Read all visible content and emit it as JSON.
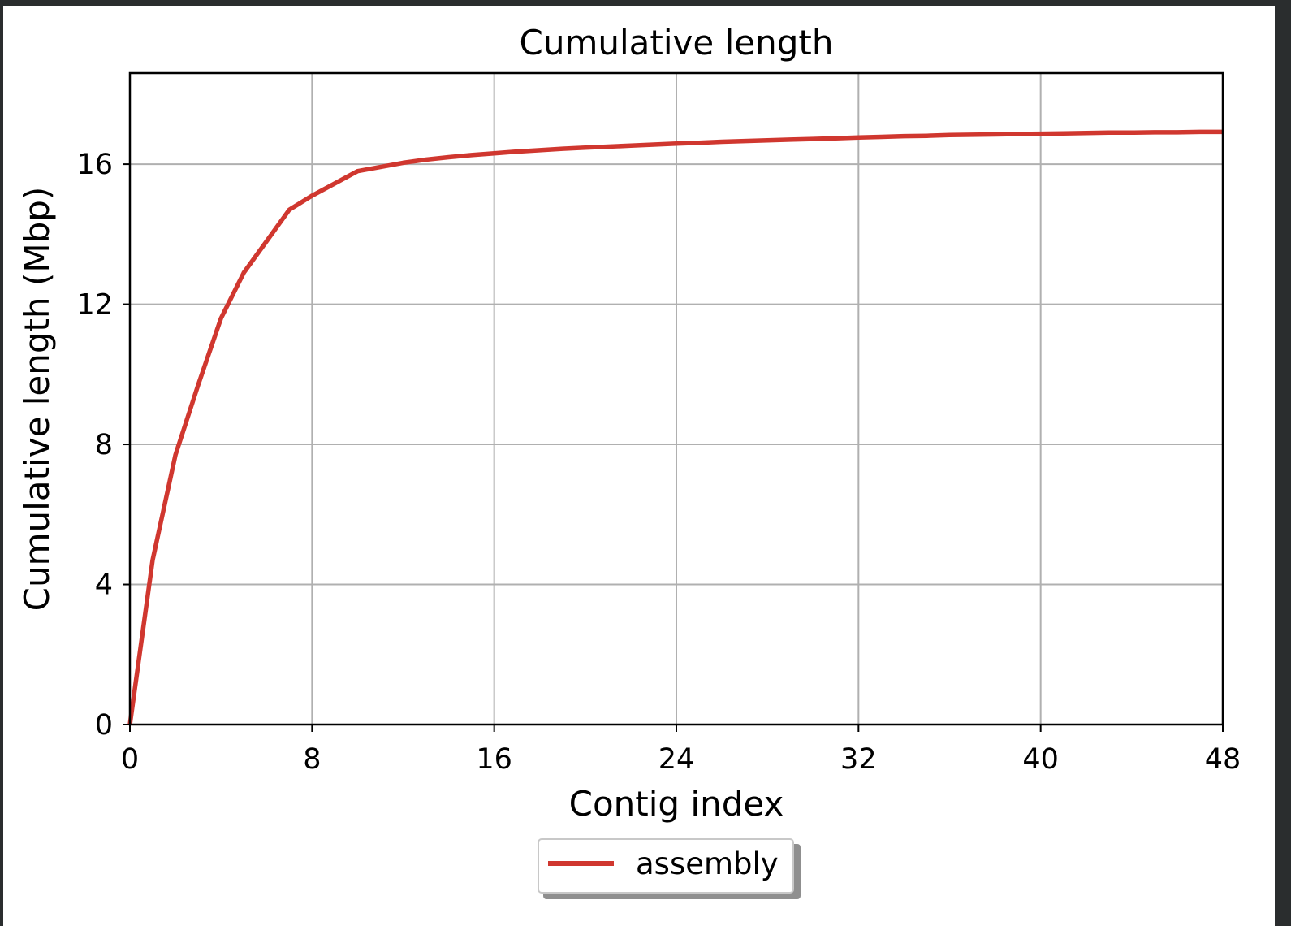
{
  "chart_data": {
    "type": "line",
    "title": "Cumulative length",
    "xlabel": "Contig index",
    "ylabel": "Cumulative length (Mbp)",
    "xlim": [
      0,
      48
    ],
    "ylim": [
      0,
      18.6
    ],
    "xticks": [
      0,
      8,
      16,
      24,
      32,
      40,
      48
    ],
    "yticks": [
      0,
      4,
      8,
      12,
      16
    ],
    "grid": true,
    "legend_position": "bottom-center",
    "series": [
      {
        "name": "assembly",
        "color": "#d0372f",
        "x": [
          0,
          1,
          2,
          3,
          4,
          5,
          6,
          7,
          8,
          9,
          10,
          11,
          12,
          13,
          14,
          15,
          16,
          17,
          18,
          19,
          20,
          21,
          22,
          23,
          24,
          25,
          26,
          27,
          28,
          29,
          30,
          31,
          32,
          33,
          34,
          35,
          36,
          37,
          38,
          39,
          40,
          41,
          42,
          43,
          44,
          45,
          46,
          47,
          48
        ],
        "y": [
          0,
          4.7,
          7.7,
          9.7,
          11.6,
          12.9,
          13.8,
          14.7,
          15.1,
          15.45,
          15.8,
          15.92,
          16.04,
          16.13,
          16.2,
          16.26,
          16.31,
          16.36,
          16.4,
          16.44,
          16.47,
          16.5,
          16.53,
          16.56,
          16.59,
          16.61,
          16.64,
          16.66,
          16.68,
          16.7,
          16.72,
          16.74,
          16.76,
          16.78,
          16.8,
          16.81,
          16.83,
          16.84,
          16.85,
          16.86,
          16.87,
          16.88,
          16.89,
          16.9,
          16.9,
          16.91,
          16.91,
          16.92,
          16.92
        ]
      }
    ]
  }
}
